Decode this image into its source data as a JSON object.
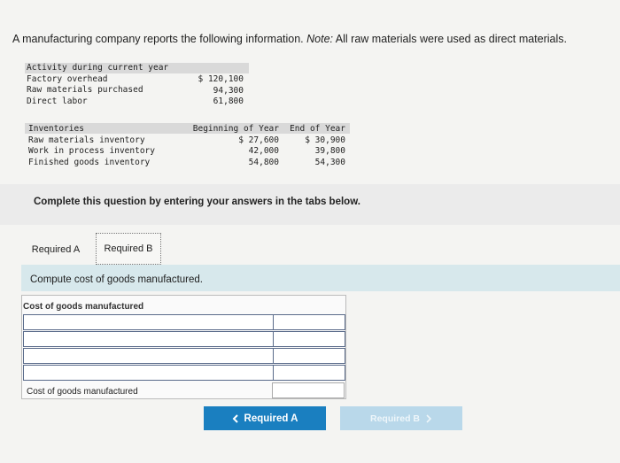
{
  "intro": {
    "text": "A manufacturing company reports the following information. ",
    "note_label": "Note:",
    "note_text": " All raw materials were used as direct materials."
  },
  "activity": {
    "header": "Activity during current year",
    "labels": [
      "Factory overhead",
      "Raw materials purchased",
      "Direct labor"
    ],
    "values": [
      "$ 120,100",
      "94,300",
      "61,800"
    ]
  },
  "inventories": {
    "header": "Inventories",
    "col_beginning": "Beginning of Year",
    "col_end": "End of Year",
    "labels": [
      "Raw materials inventory",
      "Work in process inventory",
      "Finished goods inventory"
    ],
    "beginning": [
      "$ 27,600",
      "42,000",
      "54,800"
    ],
    "end": [
      "$ 30,900",
      "39,800",
      "54,300"
    ]
  },
  "complete_text": "Complete this question by entering your answers in the tabs below.",
  "tabs": [
    {
      "label": "Required A",
      "active": true
    },
    {
      "label": "Required B",
      "active": false
    }
  ],
  "instruction": "Compute cost of goods manufactured.",
  "worksheet": {
    "title": "Cost of goods manufactured",
    "total_label": "Cost of goods manufactured"
  },
  "nav": {
    "prev_label": "Required A",
    "prev_icon": "chevron-left-icon",
    "next_label": "Required B",
    "next_icon": "chevron-right-icon"
  },
  "colors": {
    "accent": "#1a7fc0",
    "accent_disabled": "#b9d8ea",
    "instruction_band": "#d7e8ec"
  }
}
